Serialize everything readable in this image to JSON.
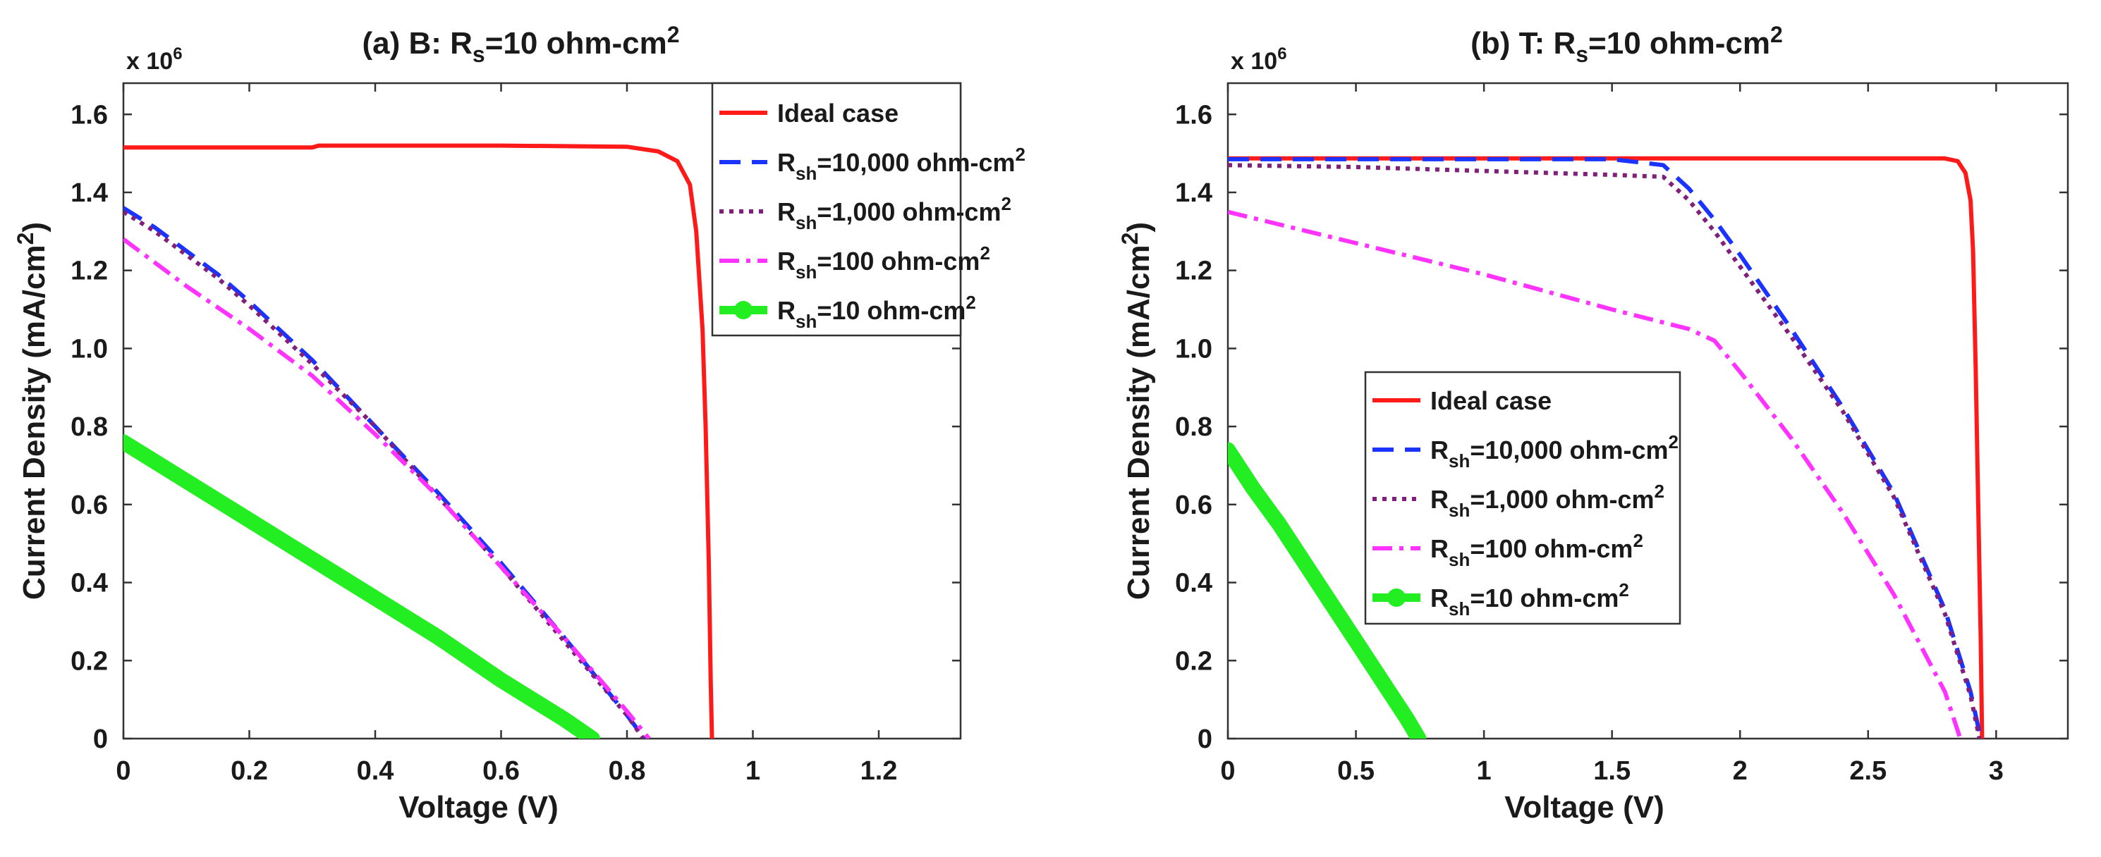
{
  "colors": {
    "ideal": "#ff1a1a",
    "rsh10000": "#1a33ff",
    "rsh1000": "#80207a",
    "rsh100": "#ff33ff",
    "rsh10": "#22ee22"
  },
  "chart_data": [
    {
      "type": "line",
      "title": {
        "prefix": "(a) B: R",
        "sub": "s",
        "suffix": "=10 ohm-cm",
        "sup": "2"
      },
      "xlabel": "Voltage (V)",
      "ylabel": {
        "text": "Current Density (mA/cm",
        "sup": "2",
        "close": ")"
      },
      "multiplier": {
        "base": "x 10",
        "exp": "6"
      },
      "xlim": [
        0,
        1.33
      ],
      "ylim": [
        0,
        1.68
      ],
      "xticks": [
        0,
        0.2,
        0.4,
        0.6,
        0.8,
        1,
        1.2
      ],
      "xtick_labels": [
        "0",
        "0.2",
        "0.4",
        "0.6",
        "0.8",
        "1",
        "1.2"
      ],
      "yticks": [
        0,
        0.2,
        0.4,
        0.6,
        0.8,
        1.0,
        1.2,
        1.4,
        1.6
      ],
      "ytick_labels": [
        "0",
        "0.2",
        "0.4",
        "0.6",
        "0.8",
        "1.0",
        "1.2",
        "1.4",
        "1.6"
      ],
      "legend_position": "top-right",
      "series": [
        {
          "key": "ideal",
          "legend": {
            "pre": "Ideal case",
            "sub": "",
            "mid": "",
            "sup": ""
          },
          "x": [
            0,
            0.3,
            0.31,
            0.6,
            0.8,
            0.85,
            0.88,
            0.9,
            0.91,
            0.92,
            0.925,
            0.93,
            0.933,
            0.935
          ],
          "y": [
            1.515,
            1.515,
            1.52,
            1.52,
            1.517,
            1.505,
            1.48,
            1.42,
            1.3,
            1.05,
            0.8,
            0.45,
            0.15,
            0
          ]
        },
        {
          "key": "rsh10000",
          "legend": {
            "pre": "R",
            "sub": "sh",
            "mid": "=10,000 ohm-cm",
            "sup": "2"
          },
          "x": [
            0,
            0.05,
            0.1,
            0.15,
            0.2,
            0.3,
            0.4,
            0.5,
            0.6,
            0.7,
            0.8,
            0.828
          ],
          "y": [
            1.36,
            1.31,
            1.25,
            1.19,
            1.12,
            0.97,
            0.8,
            0.63,
            0.45,
            0.26,
            0.06,
            0
          ]
        },
        {
          "key": "rsh1000",
          "legend": {
            "pre": "R",
            "sub": "sh",
            "mid": "=1,000 ohm-cm",
            "sup": "2"
          },
          "x": [
            0,
            0.05,
            0.1,
            0.15,
            0.2,
            0.3,
            0.4,
            0.5,
            0.6,
            0.7,
            0.8,
            0.826
          ],
          "y": [
            1.35,
            1.3,
            1.24,
            1.18,
            1.11,
            0.96,
            0.8,
            0.62,
            0.44,
            0.25,
            0.06,
            0
          ]
        },
        {
          "key": "rsh100",
          "legend": {
            "pre": "R",
            "sub": "sh",
            "mid": "=100 ohm-cm",
            "sup": "2"
          },
          "x": [
            0,
            0.05,
            0.1,
            0.2,
            0.3,
            0.4,
            0.5,
            0.6,
            0.7,
            0.8,
            0.835
          ],
          "y": [
            1.28,
            1.22,
            1.16,
            1.05,
            0.93,
            0.78,
            0.62,
            0.44,
            0.26,
            0.07,
            0
          ]
        },
        {
          "key": "rsh10",
          "legend": {
            "pre": "R",
            "sub": "sh",
            "mid": "=10 ohm-cm",
            "sup": "2"
          },
          "x": [
            0,
            0.1,
            0.2,
            0.3,
            0.4,
            0.5,
            0.6,
            0.7,
            0.745
          ],
          "y": [
            0.76,
            0.66,
            0.56,
            0.46,
            0.36,
            0.26,
            0.15,
            0.05,
            0
          ]
        }
      ]
    },
    {
      "type": "line",
      "title": {
        "prefix": "(b) T: R",
        "sub": "s",
        "suffix": "=10 ohm-cm",
        "sup": "2"
      },
      "xlabel": "Voltage (V)",
      "ylabel": {
        "text": "Current Density (mA/cm",
        "sup": "2",
        "close": ")"
      },
      "multiplier": {
        "base": "x 10",
        "exp": "6"
      },
      "xlim": [
        0,
        3.28
      ],
      "ylim": [
        0,
        1.68
      ],
      "xticks": [
        0,
        0.5,
        1,
        1.5,
        2,
        2.5,
        3
      ],
      "xtick_labels": [
        "0",
        "0.5",
        "1",
        "1.5",
        "2",
        "2.5",
        "3"
      ],
      "yticks": [
        0,
        0.2,
        0.4,
        0.6,
        0.8,
        1.0,
        1.2,
        1.4,
        1.6
      ],
      "ytick_labels": [
        "0",
        "0.2",
        "0.4",
        "0.6",
        "0.8",
        "1.0",
        "1.2",
        "1.4",
        "1.6"
      ],
      "legend_position": "center-left",
      "series": [
        {
          "key": "ideal",
          "legend": {
            "pre": "Ideal case",
            "sub": "",
            "mid": "",
            "sup": ""
          },
          "x": [
            0,
            2.8,
            2.85,
            2.88,
            2.9,
            2.91,
            2.92,
            2.93,
            2.94,
            2.945
          ],
          "y": [
            1.487,
            1.487,
            1.48,
            1.45,
            1.38,
            1.25,
            0.95,
            0.6,
            0.25,
            0
          ]
        },
        {
          "key": "rsh10000",
          "legend": {
            "pre": "R",
            "sub": "sh",
            "mid": "=10,000 ohm-cm",
            "sup": "2"
          },
          "x": [
            0,
            1.5,
            1.7,
            1.8,
            1.9,
            2.0,
            2.2,
            2.4,
            2.6,
            2.8,
            2.9,
            2.94
          ],
          "y": [
            1.485,
            1.485,
            1.47,
            1.41,
            1.33,
            1.24,
            1.05,
            0.85,
            0.63,
            0.33,
            0.12,
            0
          ]
        },
        {
          "key": "rsh1000",
          "legend": {
            "pre": "R",
            "sub": "sh",
            "mid": "=1,000 ohm-cm",
            "sup": "2"
          },
          "x": [
            0,
            0.5,
            1.0,
            1.5,
            1.7,
            1.8,
            1.9,
            2.0,
            2.2,
            2.4,
            2.6,
            2.8,
            2.9,
            2.935
          ],
          "y": [
            1.47,
            1.465,
            1.455,
            1.445,
            1.44,
            1.38,
            1.3,
            1.21,
            1.03,
            0.84,
            0.62,
            0.32,
            0.11,
            0
          ]
        },
        {
          "key": "rsh100",
          "legend": {
            "pre": "R",
            "sub": "sh",
            "mid": "=100 ohm-cm",
            "sup": "2"
          },
          "x": [
            0,
            0.5,
            1.0,
            1.5,
            1.8,
            1.9,
            2.0,
            2.2,
            2.4,
            2.6,
            2.8,
            2.86
          ],
          "y": [
            1.35,
            1.27,
            1.19,
            1.1,
            1.05,
            1.02,
            0.94,
            0.77,
            0.58,
            0.37,
            0.12,
            0
          ]
        },
        {
          "key": "rsh10",
          "legend": {
            "pre": "R",
            "sub": "sh",
            "mid": "=10 ohm-cm",
            "sup": "2"
          },
          "x": [
            0,
            0.1,
            0.2,
            0.3,
            0.4,
            0.5,
            0.6,
            0.7,
            0.745
          ],
          "y": [
            0.74,
            0.64,
            0.55,
            0.45,
            0.35,
            0.25,
            0.15,
            0.05,
            0
          ]
        }
      ]
    }
  ]
}
